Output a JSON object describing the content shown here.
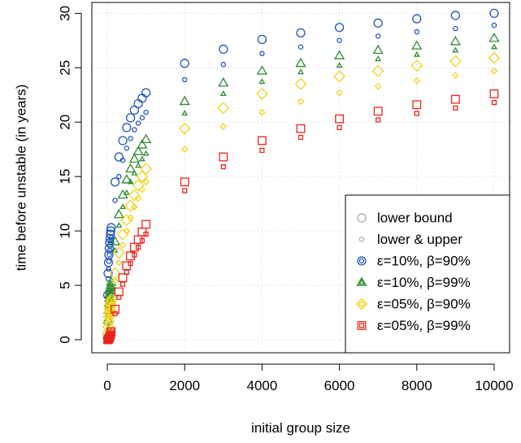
{
  "chart_data": {
    "type": "scatter",
    "title": "",
    "xlabel": "initial group size",
    "ylabel": "time before unstable (in years)",
    "xlim": [
      -400,
      10400
    ],
    "ylim": [
      -1.2,
      31
    ],
    "xticks": [
      0,
      2000,
      4000,
      6000,
      8000,
      10000
    ],
    "xtick_labels": [
      "0",
      "2000",
      "4000",
      "6000",
      "8000",
      "10000"
    ],
    "yticks": [
      0,
      5,
      10,
      15,
      20,
      25,
      30
    ],
    "ytick_labels": [
      "0",
      "5",
      "10",
      "15",
      "20",
      "25",
      "30"
    ],
    "grid": true,
    "legend_position": "bottom-right",
    "legend": [
      {
        "label": "lower bound",
        "marker": "circle",
        "color": "#aaaaaa",
        "size": "large"
      },
      {
        "label": "lower & upper",
        "marker": "circle",
        "color": "#aaaaaa",
        "size": "small"
      },
      {
        "label": "ε=10%, β=90%",
        "marker": "circle",
        "color": "#2255bb",
        "size": "double"
      },
      {
        "label": "ε=10%, β=99%",
        "marker": "triangle",
        "color": "#2e8b2e",
        "size": "double"
      },
      {
        "label": "ε=05%, β=90%",
        "marker": "diamond",
        "color": "#f2d21b",
        "size": "double"
      },
      {
        "label": "ε=05%, β=99%",
        "marker": "square",
        "color": "#e8261e",
        "size": "double"
      }
    ],
    "series": [
      {
        "name": "ε=10%, β=90%",
        "marker": "circle",
        "color": "#2255bb",
        "lower_bound": {
          "x": [
            10,
            20,
            30,
            40,
            50,
            60,
            70,
            80,
            90,
            100,
            200,
            300,
            400,
            500,
            600,
            700,
            800,
            900,
            1000,
            2000,
            3000,
            4000,
            5000,
            6000,
            7000,
            8000,
            9000,
            10000
          ],
          "y": [
            4.1,
            6.1,
            7.1,
            7.8,
            8.4,
            8.9,
            9.3,
            9.7,
            10.0,
            10.3,
            14.5,
            16.8,
            18.3,
            19.5,
            20.4,
            21.1,
            21.7,
            22.2,
            22.7,
            25.4,
            26.7,
            27.6,
            28.2,
            28.7,
            29.1,
            29.5,
            29.8,
            30.0
          ]
        },
        "lower_upper": {
          "x": [
            10,
            20,
            30,
            40,
            50,
            60,
            70,
            80,
            90,
            100,
            200,
            300,
            400,
            500,
            600,
            700,
            800,
            900,
            1000,
            2000,
            3000,
            4000,
            5000,
            6000,
            7000,
            8000,
            9000,
            10000
          ],
          "y": [
            3.9,
            5.6,
            6.5,
            7.2,
            7.8,
            8.2,
            8.6,
            8.9,
            9.2,
            9.4,
            12.8,
            15.0,
            16.5,
            17.6,
            18.5,
            19.3,
            19.9,
            20.4,
            20.9,
            23.9,
            25.3,
            26.3,
            26.9,
            27.5,
            27.9,
            28.3,
            28.6,
            28.9
          ]
        }
      },
      {
        "name": "ε=10%, β=99%",
        "marker": "triangle",
        "color": "#2e8b2e",
        "lower_bound": {
          "x": [
            10,
            20,
            30,
            40,
            50,
            60,
            70,
            80,
            90,
            100,
            200,
            300,
            400,
            500,
            600,
            700,
            800,
            900,
            1000,
            2000,
            3000,
            4000,
            5000,
            6000,
            7000,
            8000,
            9000,
            10000
          ],
          "y": [
            0.4,
            1.8,
            2.7,
            3.3,
            3.8,
            4.2,
            4.5,
            4.8,
            5.0,
            5.3,
            9.0,
            11.5,
            13.3,
            14.7,
            15.7,
            16.6,
            17.3,
            17.9,
            18.4,
            21.9,
            23.6,
            24.7,
            25.4,
            26.1,
            26.6,
            27.0,
            27.4,
            27.7
          ]
        },
        "lower_upper": {
          "x": [
            10,
            20,
            30,
            40,
            50,
            60,
            70,
            80,
            90,
            100,
            200,
            300,
            400,
            500,
            600,
            700,
            800,
            900,
            1000,
            2000,
            3000,
            4000,
            5000,
            6000,
            7000,
            8000,
            9000,
            10000
          ],
          "y": [
            0.3,
            1.5,
            2.3,
            2.9,
            3.4,
            3.8,
            4.1,
            4.4,
            4.6,
            4.8,
            8.2,
            10.5,
            12.2,
            13.5,
            14.5,
            15.3,
            16.0,
            16.6,
            17.1,
            20.8,
            22.6,
            23.7,
            24.6,
            25.2,
            25.8,
            26.2,
            26.6,
            26.9
          ]
        }
      },
      {
        "name": "ε=05%, β=90%",
        "marker": "diamond",
        "color": "#f2d21b",
        "lower_bound": {
          "x": [
            10,
            20,
            30,
            40,
            50,
            60,
            70,
            80,
            90,
            100,
            200,
            300,
            400,
            500,
            600,
            700,
            800,
            900,
            1000,
            2000,
            3000,
            4000,
            5000,
            6000,
            7000,
            8000,
            9000,
            10000
          ],
          "y": [
            0.6,
            1.2,
            1.7,
            2.1,
            2.5,
            2.8,
            3.0,
            3.3,
            3.5,
            3.7,
            6.1,
            8.0,
            9.7,
            11.0,
            12.3,
            13.3,
            14.2,
            15.0,
            15.7,
            19.4,
            21.3,
            22.6,
            23.5,
            24.2,
            24.7,
            25.2,
            25.6,
            25.9
          ]
        },
        "lower_upper": {
          "x": [
            10,
            20,
            30,
            40,
            50,
            60,
            70,
            80,
            90,
            100,
            200,
            300,
            400,
            500,
            600,
            700,
            800,
            900,
            1000,
            2000,
            3000,
            4000,
            5000,
            6000,
            7000,
            8000,
            9000,
            10000
          ],
          "y": [
            0.5,
            1.0,
            1.4,
            1.8,
            2.1,
            2.4,
            2.6,
            2.9,
            3.1,
            3.3,
            5.4,
            7.1,
            8.7,
            10.0,
            11.2,
            12.2,
            13.0,
            13.8,
            14.5,
            17.5,
            19.6,
            20.9,
            21.9,
            22.7,
            23.3,
            23.8,
            24.3,
            24.7
          ]
        }
      },
      {
        "name": "ε=05%, β=99%",
        "marker": "square",
        "color": "#e8261e",
        "lower_bound": {
          "x": [
            10,
            20,
            30,
            40,
            50,
            60,
            70,
            80,
            90,
            100,
            200,
            300,
            400,
            500,
            600,
            700,
            800,
            900,
            1000,
            2000,
            3000,
            4000,
            5000,
            6000,
            7000,
            8000,
            9000,
            10000
          ],
          "y": [
            0.0,
            0.0,
            0.05,
            0.1,
            0.15,
            0.25,
            0.35,
            0.45,
            0.6,
            0.75,
            2.8,
            4.4,
            5.7,
            6.8,
            7.7,
            8.5,
            9.2,
            9.9,
            10.6,
            14.5,
            16.8,
            18.3,
            19.4,
            20.3,
            21.0,
            21.6,
            22.1,
            22.6
          ]
        },
        "lower_upper": {
          "x": [
            10,
            20,
            30,
            40,
            50,
            60,
            70,
            80,
            90,
            100,
            200,
            300,
            400,
            500,
            600,
            700,
            800,
            900,
            1000,
            2000,
            3000,
            4000,
            5000,
            6000,
            7000,
            8000,
            9000,
            10000
          ],
          "y": [
            0.0,
            0.0,
            0.02,
            0.05,
            0.1,
            0.18,
            0.27,
            0.36,
            0.48,
            0.6,
            2.4,
            3.9,
            5.1,
            6.2,
            7.0,
            7.8,
            8.5,
            9.1,
            9.7,
            13.7,
            15.9,
            17.4,
            18.6,
            19.5,
            20.2,
            20.8,
            21.3,
            21.8
          ]
        }
      }
    ]
  }
}
